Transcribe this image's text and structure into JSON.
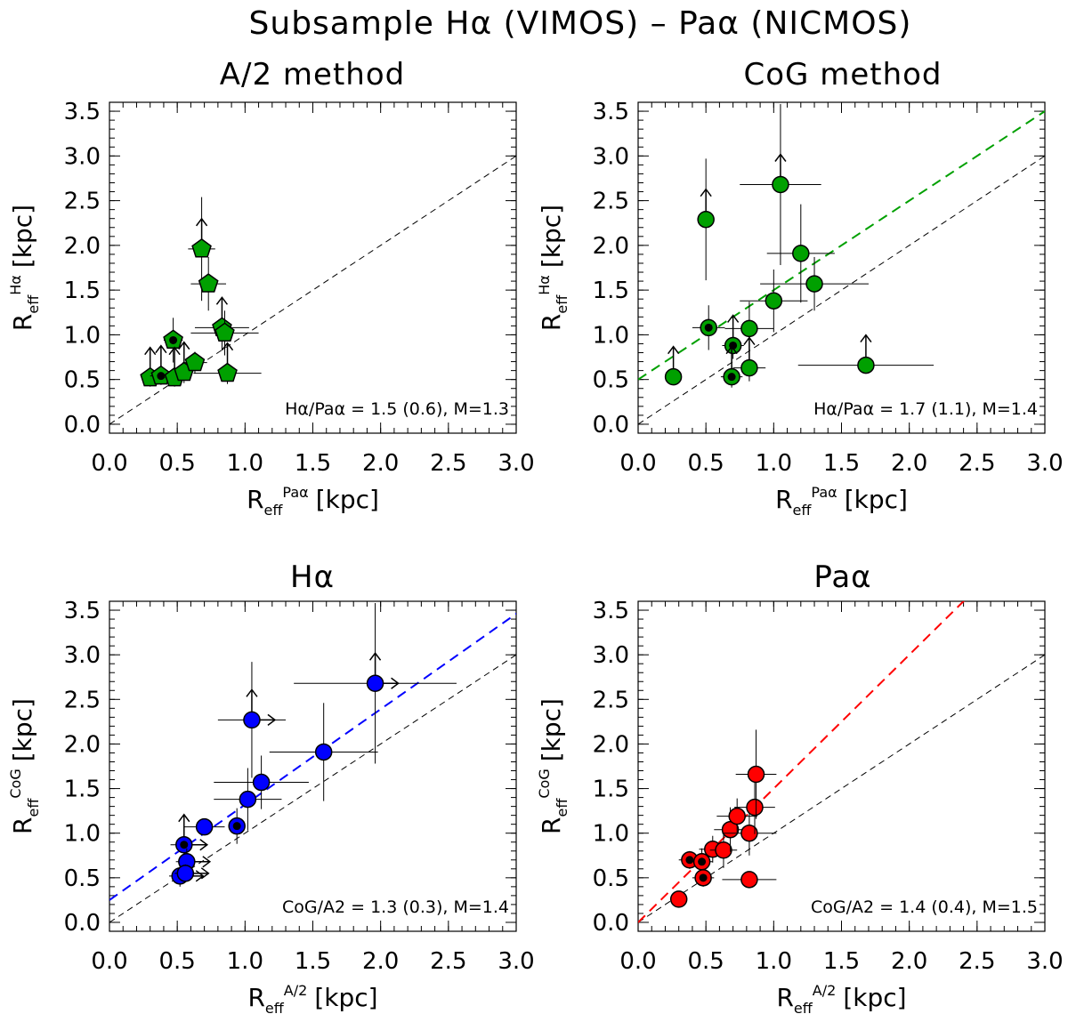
{
  "figure": {
    "title": "Subsample Hα (VIMOS) – Paα (NICMOS)"
  },
  "chart_data": [
    {
      "type": "scatter",
      "title": "A/2 method",
      "xlabel": "R",
      "xlabel_sub": "eff",
      "xlabel_sup": "Paα",
      "xlabel_unit": "[kpc]",
      "ylabel": "R",
      "ylabel_sub": "eff",
      "ylabel_sup": "Hα",
      "ylabel_unit": "[kpc]",
      "xlim": [
        0,
        3.0
      ],
      "ylim": [
        -0.1,
        3.6
      ],
      "xticks": [
        "0.0",
        "0.5",
        "1.0",
        "1.5",
        "2.0",
        "2.5",
        "3.0"
      ],
      "yticks": [
        "0.0",
        "0.5",
        "1.0",
        "1.5",
        "2.0",
        "2.5",
        "3.0",
        "3.5"
      ],
      "marker": "pentagon",
      "color": "#00a000",
      "annotation": "Hα/Paα = 1.5 (0.6), M=1.3",
      "fit_slope": null,
      "points": [
        {
          "x": 0.3,
          "y": 0.52,
          "xerr": 0.06,
          "yerr": 0.1,
          "arrow_up": true,
          "arrow_right": false,
          "inner_dot": false
        },
        {
          "x": 0.38,
          "y": 0.54,
          "xerr": 0.08,
          "yerr": 0.1,
          "arrow_up": true,
          "arrow_right": false,
          "inner_dot": true
        },
        {
          "x": 0.47,
          "y": 0.94,
          "xerr": 0.07,
          "yerr": 0.25,
          "arrow_up": false,
          "arrow_right": false,
          "inner_dot": true
        },
        {
          "x": 0.48,
          "y": 0.52,
          "xerr": 0.07,
          "yerr": 0.1,
          "arrow_up": true,
          "arrow_right": false,
          "inner_dot": false
        },
        {
          "x": 0.55,
          "y": 0.58,
          "xerr": 0.06,
          "yerr": 0.12,
          "arrow_up": true,
          "arrow_right": false,
          "inner_dot": false
        },
        {
          "x": 0.63,
          "y": 0.69,
          "xerr": 0.09,
          "yerr": 0.12,
          "arrow_up": false,
          "arrow_right": false,
          "inner_dot": false
        },
        {
          "x": 0.68,
          "y": 1.96,
          "xerr": 0.1,
          "yerr": 0.58,
          "arrow_up": true,
          "arrow_right": false,
          "inner_dot": false
        },
        {
          "x": 0.73,
          "y": 1.57,
          "xerr": 0.13,
          "yerr": 0.3,
          "arrow_up": false,
          "arrow_right": false,
          "inner_dot": false
        },
        {
          "x": 0.83,
          "y": 1.08,
          "xerr": 0.2,
          "yerr": 0.25,
          "arrow_up": true,
          "arrow_right": false,
          "inner_dot": false
        },
        {
          "x": 0.85,
          "y": 1.02,
          "xerr": 0.25,
          "yerr": 0.25,
          "arrow_up": false,
          "arrow_right": false,
          "inner_dot": false
        },
        {
          "x": 0.87,
          "y": 0.57,
          "xerr": 0.25,
          "yerr": 0.12,
          "arrow_up": true,
          "arrow_right": false,
          "inner_dot": false
        }
      ]
    },
    {
      "type": "scatter",
      "title": "CoG method",
      "xlabel": "R",
      "xlabel_sub": "eff",
      "xlabel_sup": "Paα",
      "xlabel_unit": "[kpc]",
      "ylabel": "R",
      "ylabel_sub": "eff",
      "ylabel_sup": "Hα",
      "ylabel_unit": "[kpc]",
      "xlim": [
        0,
        3.0
      ],
      "ylim": [
        -0.1,
        3.6
      ],
      "xticks": [
        "0.0",
        "0.5",
        "1.0",
        "1.5",
        "2.0",
        "2.5",
        "3.0"
      ],
      "yticks": [
        "0.0",
        "0.5",
        "1.0",
        "1.5",
        "2.0",
        "2.5",
        "3.0",
        "3.5"
      ],
      "marker": "circle",
      "color": "#00a000",
      "annotation": "Hα/Paα = 1.7 (1.1), M=1.4",
      "fit_slope": 1.0,
      "fit_intercept": 0.5,
      "fit_color": "#00a000",
      "points": [
        {
          "x": 0.26,
          "y": 0.53,
          "xerr": 0.0,
          "yerr": 0.0,
          "arrow_up": true,
          "arrow_right": false,
          "inner_dot": false
        },
        {
          "x": 0.5,
          "y": 2.29,
          "xerr": 0.0,
          "yerr": 0.68,
          "arrow_up": true,
          "arrow_right": false,
          "inner_dot": false
        },
        {
          "x": 0.52,
          "y": 1.08,
          "xerr": 0.12,
          "yerr": 0.25,
          "arrow_up": false,
          "arrow_right": false,
          "inner_dot": true
        },
        {
          "x": 0.7,
          "y": 0.88,
          "xerr": 0.08,
          "yerr": 0.15,
          "arrow_up": true,
          "arrow_right": false,
          "inner_dot": true
        },
        {
          "x": 0.69,
          "y": 0.53,
          "xerr": 0.08,
          "yerr": 0.12,
          "arrow_up": true,
          "arrow_right": false,
          "inner_dot": true
        },
        {
          "x": 0.82,
          "y": 0.63,
          "xerr": 0.12,
          "yerr": 0.15,
          "arrow_up": true,
          "arrow_right": false,
          "inner_dot": false
        },
        {
          "x": 0.82,
          "y": 1.07,
          "xerr": 0.18,
          "yerr": 0.3,
          "arrow_up": false,
          "arrow_right": false,
          "inner_dot": false
        },
        {
          "x": 1.0,
          "y": 1.38,
          "xerr": 0.25,
          "yerr": 0.35,
          "arrow_up": false,
          "arrow_right": false,
          "inner_dot": false
        },
        {
          "x": 1.05,
          "y": 2.68,
          "xerr": 0.3,
          "yerr": 0.9,
          "arrow_up": true,
          "arrow_right": false,
          "inner_dot": false
        },
        {
          "x": 1.2,
          "y": 1.91,
          "xerr": 0.25,
          "yerr": 0.55,
          "arrow_up": false,
          "arrow_right": false,
          "inner_dot": false
        },
        {
          "x": 1.3,
          "y": 1.57,
          "xerr": 0.4,
          "yerr": 0.3,
          "arrow_up": false,
          "arrow_right": false,
          "inner_dot": false
        },
        {
          "x": 1.68,
          "y": 0.66,
          "xerr": 0.5,
          "yerr": 0.0,
          "arrow_up": true,
          "arrow_right": false,
          "inner_dot": false
        }
      ]
    },
    {
      "type": "scatter",
      "title": "Hα",
      "xlabel": "R",
      "xlabel_sub": "eff",
      "xlabel_sup": "A/2",
      "xlabel_unit": "[kpc]",
      "ylabel": "R",
      "ylabel_sub": "eff",
      "ylabel_sup": "CoG",
      "ylabel_unit": "[kpc]",
      "xlim": [
        0,
        3.0
      ],
      "ylim": [
        -0.1,
        3.6
      ],
      "xticks": [
        "0.0",
        "0.5",
        "1.0",
        "1.5",
        "2.0",
        "2.5",
        "3.0"
      ],
      "yticks": [
        "0.0",
        "0.5",
        "1.0",
        "1.5",
        "2.0",
        "2.5",
        "3.0",
        "3.5"
      ],
      "marker": "circle",
      "color": "#0000ff",
      "annotation": "CoG/A2 = 1.3 (0.3), M=1.4",
      "fit_slope": 1.07,
      "fit_intercept": 0.25,
      "fit_color": "#0000ff",
      "points": [
        {
          "x": 0.52,
          "y": 0.52,
          "xerr": 0.08,
          "yerr": 0.12,
          "arrow_up": false,
          "arrow_right": true,
          "inner_dot": false
        },
        {
          "x": 0.55,
          "y": 0.87,
          "xerr": 0.1,
          "yerr": 0.2,
          "arrow_up": true,
          "arrow_right": true,
          "inner_dot": true
        },
        {
          "x": 0.57,
          "y": 0.68,
          "xerr": 0.08,
          "yerr": 0.15,
          "arrow_up": false,
          "arrow_right": true,
          "inner_dot": false
        },
        {
          "x": 0.56,
          "y": 0.55,
          "xerr": 0.08,
          "yerr": 0.1,
          "arrow_up": false,
          "arrow_right": true,
          "inner_dot": false
        },
        {
          "x": 0.7,
          "y": 1.07,
          "xerr": 0.15,
          "yerr": 0.0,
          "arrow_up": false,
          "arrow_right": false,
          "inner_dot": false
        },
        {
          "x": 0.94,
          "y": 1.08,
          "xerr": 0.0,
          "yerr": 0.2,
          "arrow_up": false,
          "arrow_right": false,
          "inner_dot": true
        },
        {
          "x": 1.02,
          "y": 1.38,
          "xerr": 0.25,
          "yerr": 0.35,
          "arrow_up": false,
          "arrow_right": false,
          "inner_dot": false
        },
        {
          "x": 1.05,
          "y": 2.27,
          "xerr": 0.25,
          "yerr": 0.65,
          "arrow_up": true,
          "arrow_right": true,
          "inner_dot": false
        },
        {
          "x": 1.12,
          "y": 1.57,
          "xerr": 0.35,
          "yerr": 0.3,
          "arrow_up": false,
          "arrow_right": false,
          "inner_dot": false
        },
        {
          "x": 1.58,
          "y": 1.91,
          "xerr": 0.4,
          "yerr": 0.55,
          "arrow_up": false,
          "arrow_right": false,
          "inner_dot": false
        },
        {
          "x": 1.96,
          "y": 2.68,
          "xerr": 0.6,
          "yerr": 0.9,
          "arrow_up": true,
          "arrow_right": true,
          "inner_dot": false
        }
      ]
    },
    {
      "type": "scatter",
      "title": "Paα",
      "xlabel": "R",
      "xlabel_sub": "eff",
      "xlabel_sup": "A/2",
      "xlabel_unit": "[kpc]",
      "ylabel": "R",
      "ylabel_sub": "eff",
      "ylabel_sup": "CoG",
      "ylabel_unit": "[kpc]",
      "xlim": [
        0,
        3.0
      ],
      "ylim": [
        -0.1,
        3.6
      ],
      "xticks": [
        "0.0",
        "0.5",
        "1.0",
        "1.5",
        "2.0",
        "2.5",
        "3.0"
      ],
      "yticks": [
        "0.0",
        "0.5",
        "1.0",
        "1.5",
        "2.0",
        "2.5",
        "3.0",
        "3.5"
      ],
      "marker": "circle",
      "color": "#ff0000",
      "annotation": "CoG/A2 = 1.4 (0.4), M=1.5",
      "fit_slope": 1.5,
      "fit_intercept": 0.0,
      "fit_color": "#ff0000",
      "points": [
        {
          "x": 0.3,
          "y": 0.26,
          "xerr": 0.0,
          "yerr": 0.0,
          "arrow_up": false,
          "arrow_right": false,
          "inner_dot": false
        },
        {
          "x": 0.38,
          "y": 0.7,
          "xerr": 0.08,
          "yerr": 0.1,
          "arrow_up": false,
          "arrow_right": false,
          "inner_dot": true
        },
        {
          "x": 0.47,
          "y": 0.68,
          "xerr": 0.08,
          "yerr": 0.15,
          "arrow_up": false,
          "arrow_right": false,
          "inner_dot": true
        },
        {
          "x": 0.48,
          "y": 0.5,
          "xerr": 0.08,
          "yerr": 0.1,
          "arrow_up": false,
          "arrow_right": false,
          "inner_dot": true
        },
        {
          "x": 0.55,
          "y": 0.82,
          "xerr": 0.1,
          "yerr": 0.15,
          "arrow_up": false,
          "arrow_right": false,
          "inner_dot": false
        },
        {
          "x": 0.63,
          "y": 0.81,
          "xerr": 0.1,
          "yerr": 0.2,
          "arrow_up": false,
          "arrow_right": false,
          "inner_dot": false
        },
        {
          "x": 0.68,
          "y": 1.04,
          "xerr": 0.12,
          "yerr": 0.25,
          "arrow_up": false,
          "arrow_right": false,
          "inner_dot": false
        },
        {
          "x": 0.73,
          "y": 1.19,
          "xerr": 0.15,
          "yerr": 0.2,
          "arrow_up": false,
          "arrow_right": false,
          "inner_dot": false
        },
        {
          "x": 0.82,
          "y": 1.0,
          "xerr": 0.2,
          "yerr": 0.25,
          "arrow_up": false,
          "arrow_right": false,
          "inner_dot": false
        },
        {
          "x": 0.82,
          "y": 0.48,
          "xerr": 0.2,
          "yerr": 0.0,
          "arrow_up": false,
          "arrow_right": false,
          "inner_dot": false
        },
        {
          "x": 0.86,
          "y": 1.29,
          "xerr": 0.15,
          "yerr": 0.3,
          "arrow_up": false,
          "arrow_right": false,
          "inner_dot": false
        },
        {
          "x": 0.87,
          "y": 1.66,
          "xerr": 0.15,
          "yerr": 0.5,
          "arrow_up": false,
          "arrow_right": false,
          "inner_dot": false
        }
      ]
    }
  ]
}
